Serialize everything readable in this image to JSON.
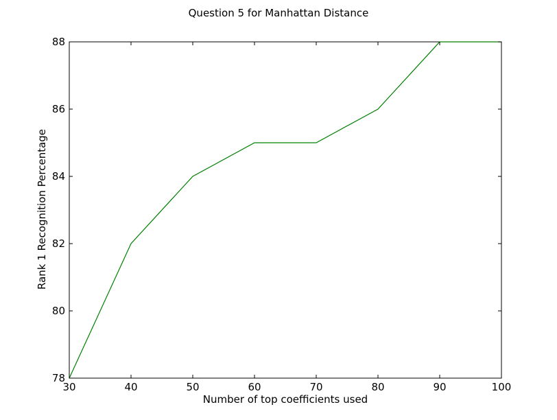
{
  "chart_data": {
    "type": "line",
    "title": "Question 5 for Manhattan Distance",
    "xlabel": "Number of top coefficients used",
    "ylabel": "Rank 1 Recognition Percentage",
    "xlim": [
      30,
      100
    ],
    "ylim": [
      78,
      88
    ],
    "xticks": [
      30,
      40,
      50,
      60,
      70,
      80,
      90,
      100
    ],
    "yticks": [
      78,
      80,
      82,
      84,
      86,
      88
    ],
    "grid": false,
    "legend": "none",
    "series": [
      {
        "color": "#008000",
        "x": [
          30,
          40,
          50,
          60,
          70,
          80,
          90,
          100
        ],
        "y": [
          78,
          82,
          84,
          85,
          85,
          86,
          88,
          88
        ]
      }
    ]
  }
}
